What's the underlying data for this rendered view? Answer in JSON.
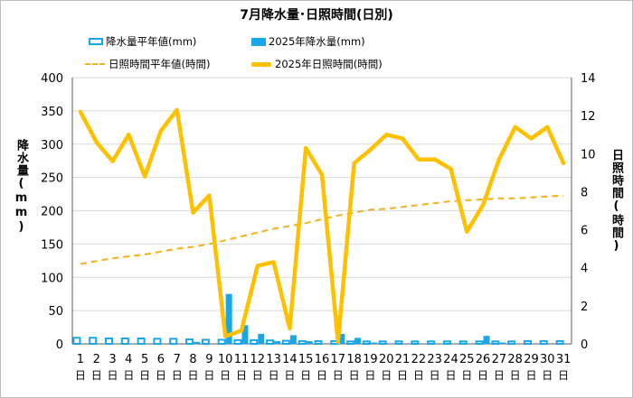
{
  "chart_data": {
    "type": "bar+line",
    "title": "7月降水量･日照時間(日別)",
    "categories": [
      "1",
      "2",
      "3",
      "4",
      "5",
      "6",
      "7",
      "8",
      "9",
      "10",
      "11",
      "12",
      "13",
      "14",
      "15",
      "16",
      "17",
      "18",
      "19",
      "20",
      "21",
      "22",
      "23",
      "24",
      "25",
      "26",
      "27",
      "28",
      "29",
      "30",
      "31"
    ],
    "category_suffix": "日",
    "y_left": {
      "label": "降水量(mm)",
      "ylim": [
        0,
        400
      ],
      "ticks": [
        0,
        50,
        100,
        150,
        200,
        250,
        300,
        350,
        400
      ]
    },
    "y_right": {
      "label": "日照時間(時間)",
      "ylim": [
        0,
        14
      ],
      "ticks": [
        0,
        2,
        4,
        6,
        8,
        10,
        12,
        14
      ]
    },
    "series": [
      {
        "name": "降水量平年値(mm)",
        "kind": "bar",
        "style": "hollow",
        "axis": "left",
        "color": "#1aa7e8",
        "values": [
          10.5,
          10.5,
          9.5,
          9.5,
          9.5,
          9,
          9,
          8,
          7.5,
          7.5,
          7,
          7,
          6.5,
          6,
          5.5,
          5.5,
          5.5,
          5,
          5,
          5,
          5,
          5,
          5,
          5,
          5,
          5,
          5,
          5,
          5.5,
          5.5,
          5.5
        ]
      },
      {
        "name": "2025年降水量(mm)",
        "kind": "bar",
        "style": "solid",
        "axis": "left",
        "color": "#1aa7e8",
        "values": [
          0,
          0,
          0,
          0,
          0,
          0,
          0,
          3,
          0,
          75,
          28,
          15,
          4,
          13,
          4,
          0,
          15,
          9,
          2,
          0,
          0,
          0,
          0,
          0,
          0,
          12,
          2,
          0,
          0,
          0,
          0
        ]
      },
      {
        "name": "日照時間平年値(時間)",
        "kind": "line",
        "style": "dashed",
        "axis": "right",
        "color": "#f2b21a",
        "values": [
          4.2,
          4.35,
          4.5,
          4.6,
          4.7,
          4.85,
          5.0,
          5.1,
          5.25,
          5.45,
          5.65,
          5.85,
          6.05,
          6.2,
          6.35,
          6.55,
          6.75,
          6.9,
          7.05,
          7.1,
          7.2,
          7.3,
          7.4,
          7.5,
          7.55,
          7.6,
          7.65,
          7.65,
          7.7,
          7.75,
          7.8
        ]
      },
      {
        "name": "2025年日照時間(時間)",
        "kind": "line",
        "style": "solid",
        "axis": "right",
        "color": "#ffc000",
        "values": [
          12.2,
          10.6,
          9.6,
          11.0,
          8.8,
          11.2,
          12.3,
          6.9,
          7.8,
          0.4,
          0.7,
          4.1,
          4.3,
          0.8,
          10.3,
          8.9,
          0.1,
          9.5,
          10.2,
          11.0,
          10.8,
          9.7,
          9.7,
          9.2,
          5.9,
          7.3,
          9.7,
          11.4,
          10.8,
          11.4,
          9.5
        ]
      }
    ],
    "grid": true,
    "legend": "top"
  },
  "legend": {
    "item1": "降水量平年値(mm)",
    "item2": "2025年降水量(mm)",
    "item3": "日照時間平年値(時間)",
    "item4": "2025年日照時間(時間)"
  }
}
